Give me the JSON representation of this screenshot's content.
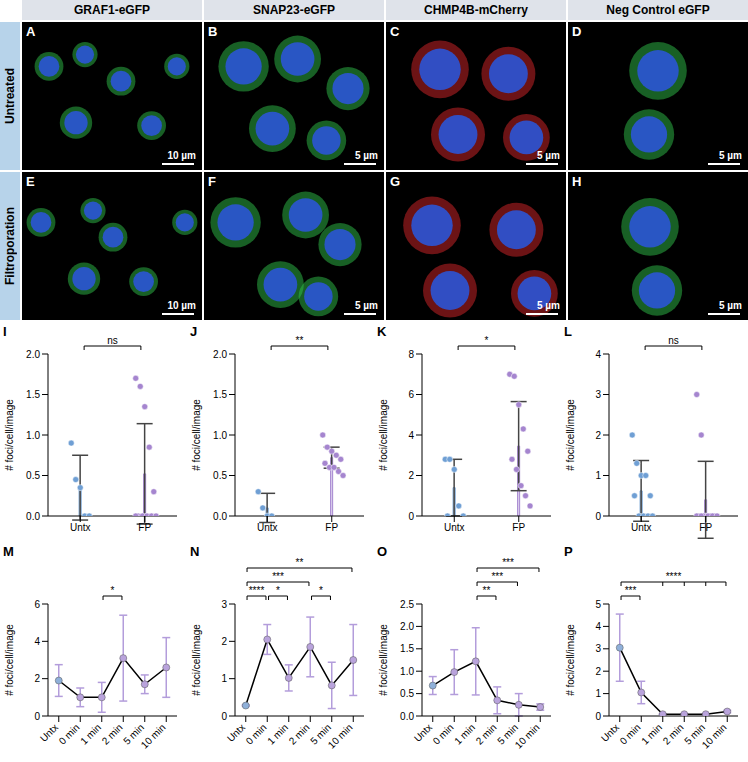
{
  "images": {
    "columns": [
      "GRAF1-eGFP",
      "SNAP23-eGFP",
      "CHMP4B-mCherry",
      "Neg Control eGFP"
    ],
    "rows": [
      "Untreated",
      "Filtroporation"
    ],
    "panels": [
      [
        {
          "label": "A",
          "scale_bar": "10 µm"
        },
        {
          "label": "B",
          "scale_bar": "5 µm"
        },
        {
          "label": "C",
          "scale_bar": "5 µm"
        },
        {
          "label": "D",
          "scale_bar": "5 µm"
        }
      ],
      [
        {
          "label": "E",
          "scale_bar": "10 µm"
        },
        {
          "label": "F",
          "scale_bar": "5 µm"
        },
        {
          "label": "G",
          "scale_bar": "5 µm"
        },
        {
          "label": "H",
          "scale_bar": "5 µm"
        }
      ]
    ]
  },
  "chart_data": [
    {
      "panel": "I",
      "type": "bar",
      "categories": [
        "Untx",
        "FP"
      ],
      "values": [
        0.35,
        0.52
      ],
      "errors": [
        0.4,
        0.62
      ],
      "points": [
        [
          0.9,
          0.45,
          0.35,
          0,
          0
        ],
        [
          1.7,
          1.6,
          1.35,
          0.85,
          0.3,
          0,
          0,
          0,
          0,
          0,
          0
        ]
      ],
      "colors": [
        "#c6d8ec",
        "#ddd0ee"
      ],
      "ylabel": "# foci/cell/image",
      "ylim": [
        0,
        2
      ],
      "yticks": [
        {
          "value": 0,
          "label": "0.0"
        },
        {
          "value": 0.5,
          "label": "0.5"
        },
        {
          "value": 1,
          "label": "1.0"
        },
        {
          "value": 1.5,
          "label": "1.5"
        },
        {
          "value": 2,
          "label": "2.0"
        }
      ],
      "comparisons": [
        {
          "from": "Untx",
          "to": "FP",
          "label": "ns"
        }
      ]
    },
    {
      "panel": "J",
      "type": "bar",
      "categories": [
        "Untx",
        "FP"
      ],
      "values": [
        0.1,
        0.72
      ],
      "errors": [
        0.18,
        0.13
      ],
      "points": [
        [
          0.3,
          0.1,
          0,
          0
        ],
        [
          1.0,
          0.85,
          0.8,
          0.75,
          0.7,
          0.65,
          0.6,
          0.6,
          0.55,
          0.5
        ]
      ],
      "colors": [
        "#c6d8ec",
        "#ddd0ee"
      ],
      "ylabel": "# foci/cell/image",
      "ylim": [
        0,
        2
      ],
      "yticks": [
        {
          "value": 0,
          "label": "0.0"
        },
        {
          "value": 0.5,
          "label": "0.5"
        },
        {
          "value": 1,
          "label": "1.0"
        },
        {
          "value": 1.5,
          "label": "1.5"
        },
        {
          "value": 2,
          "label": "2.0"
        }
      ],
      "comparisons": [
        {
          "from": "Untx",
          "to": "FP",
          "label": "**"
        }
      ]
    },
    {
      "panel": "K",
      "type": "bar",
      "categories": [
        "Untx",
        "FP"
      ],
      "values": [
        1.4,
        3.45
      ],
      "errors": [
        1.4,
        2.2
      ],
      "points": [
        [
          2.8,
          2.8,
          2.3,
          0.5,
          0,
          0
        ],
        [
          7,
          6.9,
          5.5,
          4.3,
          3.2,
          2.8,
          2.3,
          1.5,
          1,
          0.5
        ]
      ],
      "colors": [
        "#c6d8ec",
        "#ddd0ee"
      ],
      "ylabel": "# foci/cell/image",
      "ylim": [
        0,
        8
      ],
      "yticks": [
        0,
        2,
        4,
        6,
        8
      ],
      "comparisons": [
        {
          "from": "Untx",
          "to": "FP",
          "label": "*"
        }
      ]
    },
    {
      "panel": "L",
      "type": "bar",
      "categories": [
        "Untx",
        "FP"
      ],
      "values": [
        0.62,
        0.4
      ],
      "errors": [
        0.75,
        0.95
      ],
      "points": [
        [
          2,
          1.3,
          1,
          1,
          0.5,
          0.5,
          0,
          0,
          0,
          0
        ],
        [
          3,
          2,
          0,
          0,
          0,
          0,
          0,
          0,
          0,
          0,
          0,
          0
        ]
      ],
      "colors": [
        "#c6d8ec",
        "#ddd0ee"
      ],
      "ylabel": "# foci/cell/image",
      "ylim": [
        0,
        4
      ],
      "yticks": [
        0,
        1,
        2,
        3,
        4
      ],
      "comparisons": [
        {
          "from": "Untx",
          "to": "FP",
          "label": "ns"
        }
      ]
    },
    {
      "panel": "M",
      "type": "line",
      "categories": [
        "Untx",
        "0 min",
        "1 min",
        "2 min",
        "5 min",
        "10 min"
      ],
      "values": [
        1.9,
        1.0,
        1.0,
        3.1,
        1.7,
        2.6
      ],
      "errors": [
        0.85,
        0.5,
        0.8,
        2.3,
        0.5,
        1.6
      ],
      "color": "#000000",
      "colors": [
        "#8fb0d9",
        "#b9a3dc",
        "#b9a3dc",
        "#b9a3dc",
        "#b9a3dc",
        "#b9a3dc"
      ],
      "marker": "circle",
      "ylabel": "# foci/cell/image",
      "ylim": [
        0,
        6
      ],
      "yticks": [
        0,
        2,
        4,
        6
      ],
      "comparisons": [
        {
          "from": "1 min",
          "to": "2 min",
          "label": "*"
        }
      ]
    },
    {
      "panel": "N",
      "type": "line",
      "categories": [
        "Untx",
        "0 min",
        "1 min",
        "2 min",
        "5 min",
        "10 min"
      ],
      "values": [
        0.28,
        2.05,
        1.02,
        1.85,
        0.82,
        1.5
      ],
      "errors": [
        0.02,
        0.4,
        0.35,
        0.8,
        0.62,
        0.95
      ],
      "color": "#000000",
      "colors": [
        "#8fb0d9",
        "#b9a3dc",
        "#b9a3dc",
        "#b9a3dc",
        "#b9a3dc",
        "#b9a3dc"
      ],
      "marker": "circle",
      "ylabel": "# foci/cell/image",
      "ylim": [
        0,
        3
      ],
      "yticks": [
        0,
        1,
        2,
        3
      ],
      "comparisons": [
        {
          "from": "Untx",
          "to": "0 min",
          "label": "****"
        },
        {
          "from": "0 min",
          "to": "1 min",
          "label": "*"
        },
        {
          "from": "Untx",
          "to": "2 min",
          "label": "***"
        },
        {
          "from": "2 min",
          "to": "5 min",
          "label": "*"
        },
        {
          "from": "Untx",
          "to": "10 min",
          "label": "**"
        }
      ]
    },
    {
      "panel": "O",
      "type": "line",
      "categories": [
        "Untx",
        "0 min",
        "1 min",
        "2 min",
        "5 min",
        "10 min"
      ],
      "values": [
        0.68,
        0.98,
        1.22,
        0.35,
        0.25,
        0.2
      ],
      "errors": [
        0.2,
        0.5,
        0.75,
        0.3,
        0.25,
        0.07
      ],
      "color": "#000000",
      "colors": [
        "#8fb0d9",
        "#b9a3dc",
        "#b9a3dc",
        "#b9a3dc",
        "#b9a3dc",
        "#b9a3dc"
      ],
      "marker": "circle",
      "ylabel": "# foci/cell/image",
      "ylim": [
        0,
        2.5
      ],
      "yticks": [
        {
          "value": 0,
          "label": "0.0"
        },
        {
          "value": 0.5,
          "label": "0.5"
        },
        {
          "value": 1,
          "label": "1.0"
        },
        {
          "value": 1.5,
          "label": "1.5"
        },
        {
          "value": 2,
          "label": "2.0"
        },
        {
          "value": 2.5,
          "label": "2.5"
        }
      ],
      "comparisons": [
        {
          "from": "1 min",
          "to": "2 min",
          "label": "**"
        },
        {
          "from": "1 min",
          "to": "5 min",
          "label": "***"
        },
        {
          "from": "1 min",
          "to": "10 min",
          "label": "***"
        }
      ]
    },
    {
      "panel": "P",
      "type": "line",
      "categories": [
        "Untx",
        "0 min",
        "1 min",
        "2 min",
        "5 min",
        "10 min"
      ],
      "values": [
        3.05,
        1.05,
        0.08,
        0.08,
        0.08,
        0.2
      ],
      "errors": [
        1.5,
        0.5,
        0.02,
        0.02,
        0.02,
        0.05
      ],
      "color": "#000000",
      "colors": [
        "#8fb0d9",
        "#b9a3dc",
        "#b9a3dc",
        "#b9a3dc",
        "#b9a3dc",
        "#b9a3dc"
      ],
      "marker": "circle",
      "ylabel": "# foci/cell/image",
      "ylim": [
        0,
        5
      ],
      "yticks": [
        0,
        1,
        2,
        3,
        4,
        5
      ],
      "comparisons": [
        {
          "from": "Untx",
          "to": "0 min",
          "label": "***"
        },
        {
          "from": "Untx",
          "to": [
            "1 min",
            "2 min",
            "5 min",
            "10 min"
          ],
          "label": "****"
        }
      ]
    }
  ]
}
